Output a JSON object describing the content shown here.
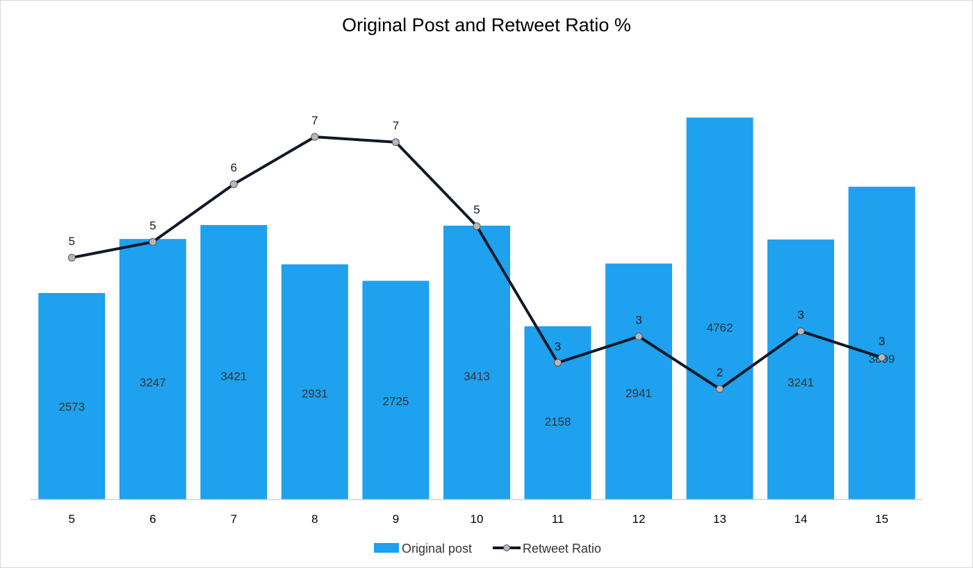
{
  "chart_data": {
    "type": "bar",
    "title": "Original Post and Retweet Ratio %",
    "categories": [
      "5",
      "6",
      "7",
      "8",
      "9",
      "10",
      "11",
      "12",
      "13",
      "14",
      "15"
    ],
    "series": [
      {
        "name": "Original post",
        "type": "bar",
        "color": "#1ea1ee",
        "values": [
          2573,
          3247,
          3421,
          2931,
          2725,
          3413,
          2158,
          2941,
          4762,
          3241,
          3899
        ]
      },
      {
        "name": "Retweet Ratio",
        "type": "line",
        "color": "#111827",
        "marker_color": "#b8b8b8",
        "values": [
          4.6,
          4.9,
          6.0,
          6.9,
          6.8,
          5.2,
          2.6,
          3.1,
          2.1,
          3.2,
          2.7
        ],
        "labels": [
          "5",
          "5",
          "6",
          "7",
          "7",
          "5",
          "3",
          "3",
          "2",
          "3",
          "3"
        ]
      }
    ],
    "bar_axis_range": [
      0,
      5700
    ],
    "line_axis_range": [
      0,
      8.7
    ],
    "grid": false,
    "legend_position": "bottom"
  }
}
